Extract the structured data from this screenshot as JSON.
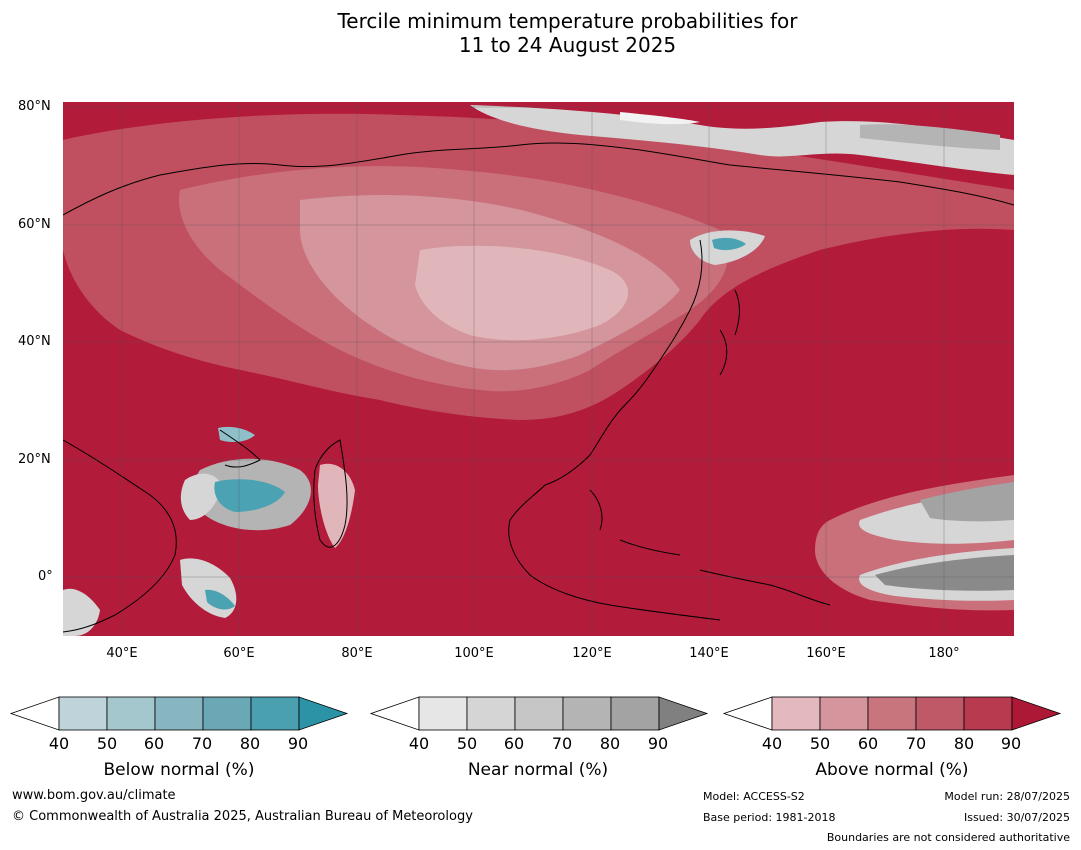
{
  "title": {
    "line1": "Tercile minimum temperature probabilities for",
    "line2": "11 to 24 August 2025"
  },
  "map": {
    "lat_labels": [
      "80°N",
      "60°N",
      "40°N",
      "20°N",
      "0°"
    ],
    "lon_labels": [
      "40°E",
      "60°E",
      "80°E",
      "100°E",
      "120°E",
      "140°E",
      "160°E",
      "180°"
    ],
    "colors": {
      "ocean_dominant": "#b31b3a",
      "above_80": "#b52e45",
      "above_70": "#c0505f",
      "above_60": "#c9707b",
      "above_50": "#d4959c",
      "above_40": "#e0b6bb",
      "near": "#d6d6d6",
      "near_dark": "#8a8a8a",
      "below": "#4aa2b2",
      "below_light": "#8fc0ca"
    }
  },
  "colorbars": [
    {
      "title": "Below normal (%)",
      "ticks": [
        "40",
        "50",
        "60",
        "70",
        "80",
        "90"
      ],
      "colors": [
        "#bed4da",
        "#a4c6cd",
        "#88b6c0",
        "#6aa8b5",
        "#4ba0b0",
        "#2c92a6"
      ]
    },
    {
      "title": "Near normal (%)",
      "ticks": [
        "40",
        "50",
        "60",
        "70",
        "80",
        "90"
      ],
      "colors": [
        "#e6e6e6",
        "#d5d5d5",
        "#c6c6c6",
        "#b4b4b4",
        "#a3a3a3",
        "#808080"
      ]
    },
    {
      "title": "Above normal (%)",
      "ticks": [
        "40",
        "50",
        "60",
        "70",
        "80",
        "90"
      ],
      "colors": [
        "#e3b8bf",
        "#d5959d",
        "#c9757e",
        "#c05967",
        "#b73a4f",
        "#ad1836"
      ]
    }
  ],
  "footer": {
    "website": "www.bom.gov.au/climate",
    "copyright": "© Commonwealth of Australia 2025, Australian Bureau of Meteorology",
    "model": "Model: ACCESS-S2",
    "base_period": "Base period: 1981-2018",
    "model_run": "Model run: 28/07/2025",
    "issued": "Issued: 30/07/2025",
    "disclaimer": "Boundaries are not considered authoritative"
  }
}
